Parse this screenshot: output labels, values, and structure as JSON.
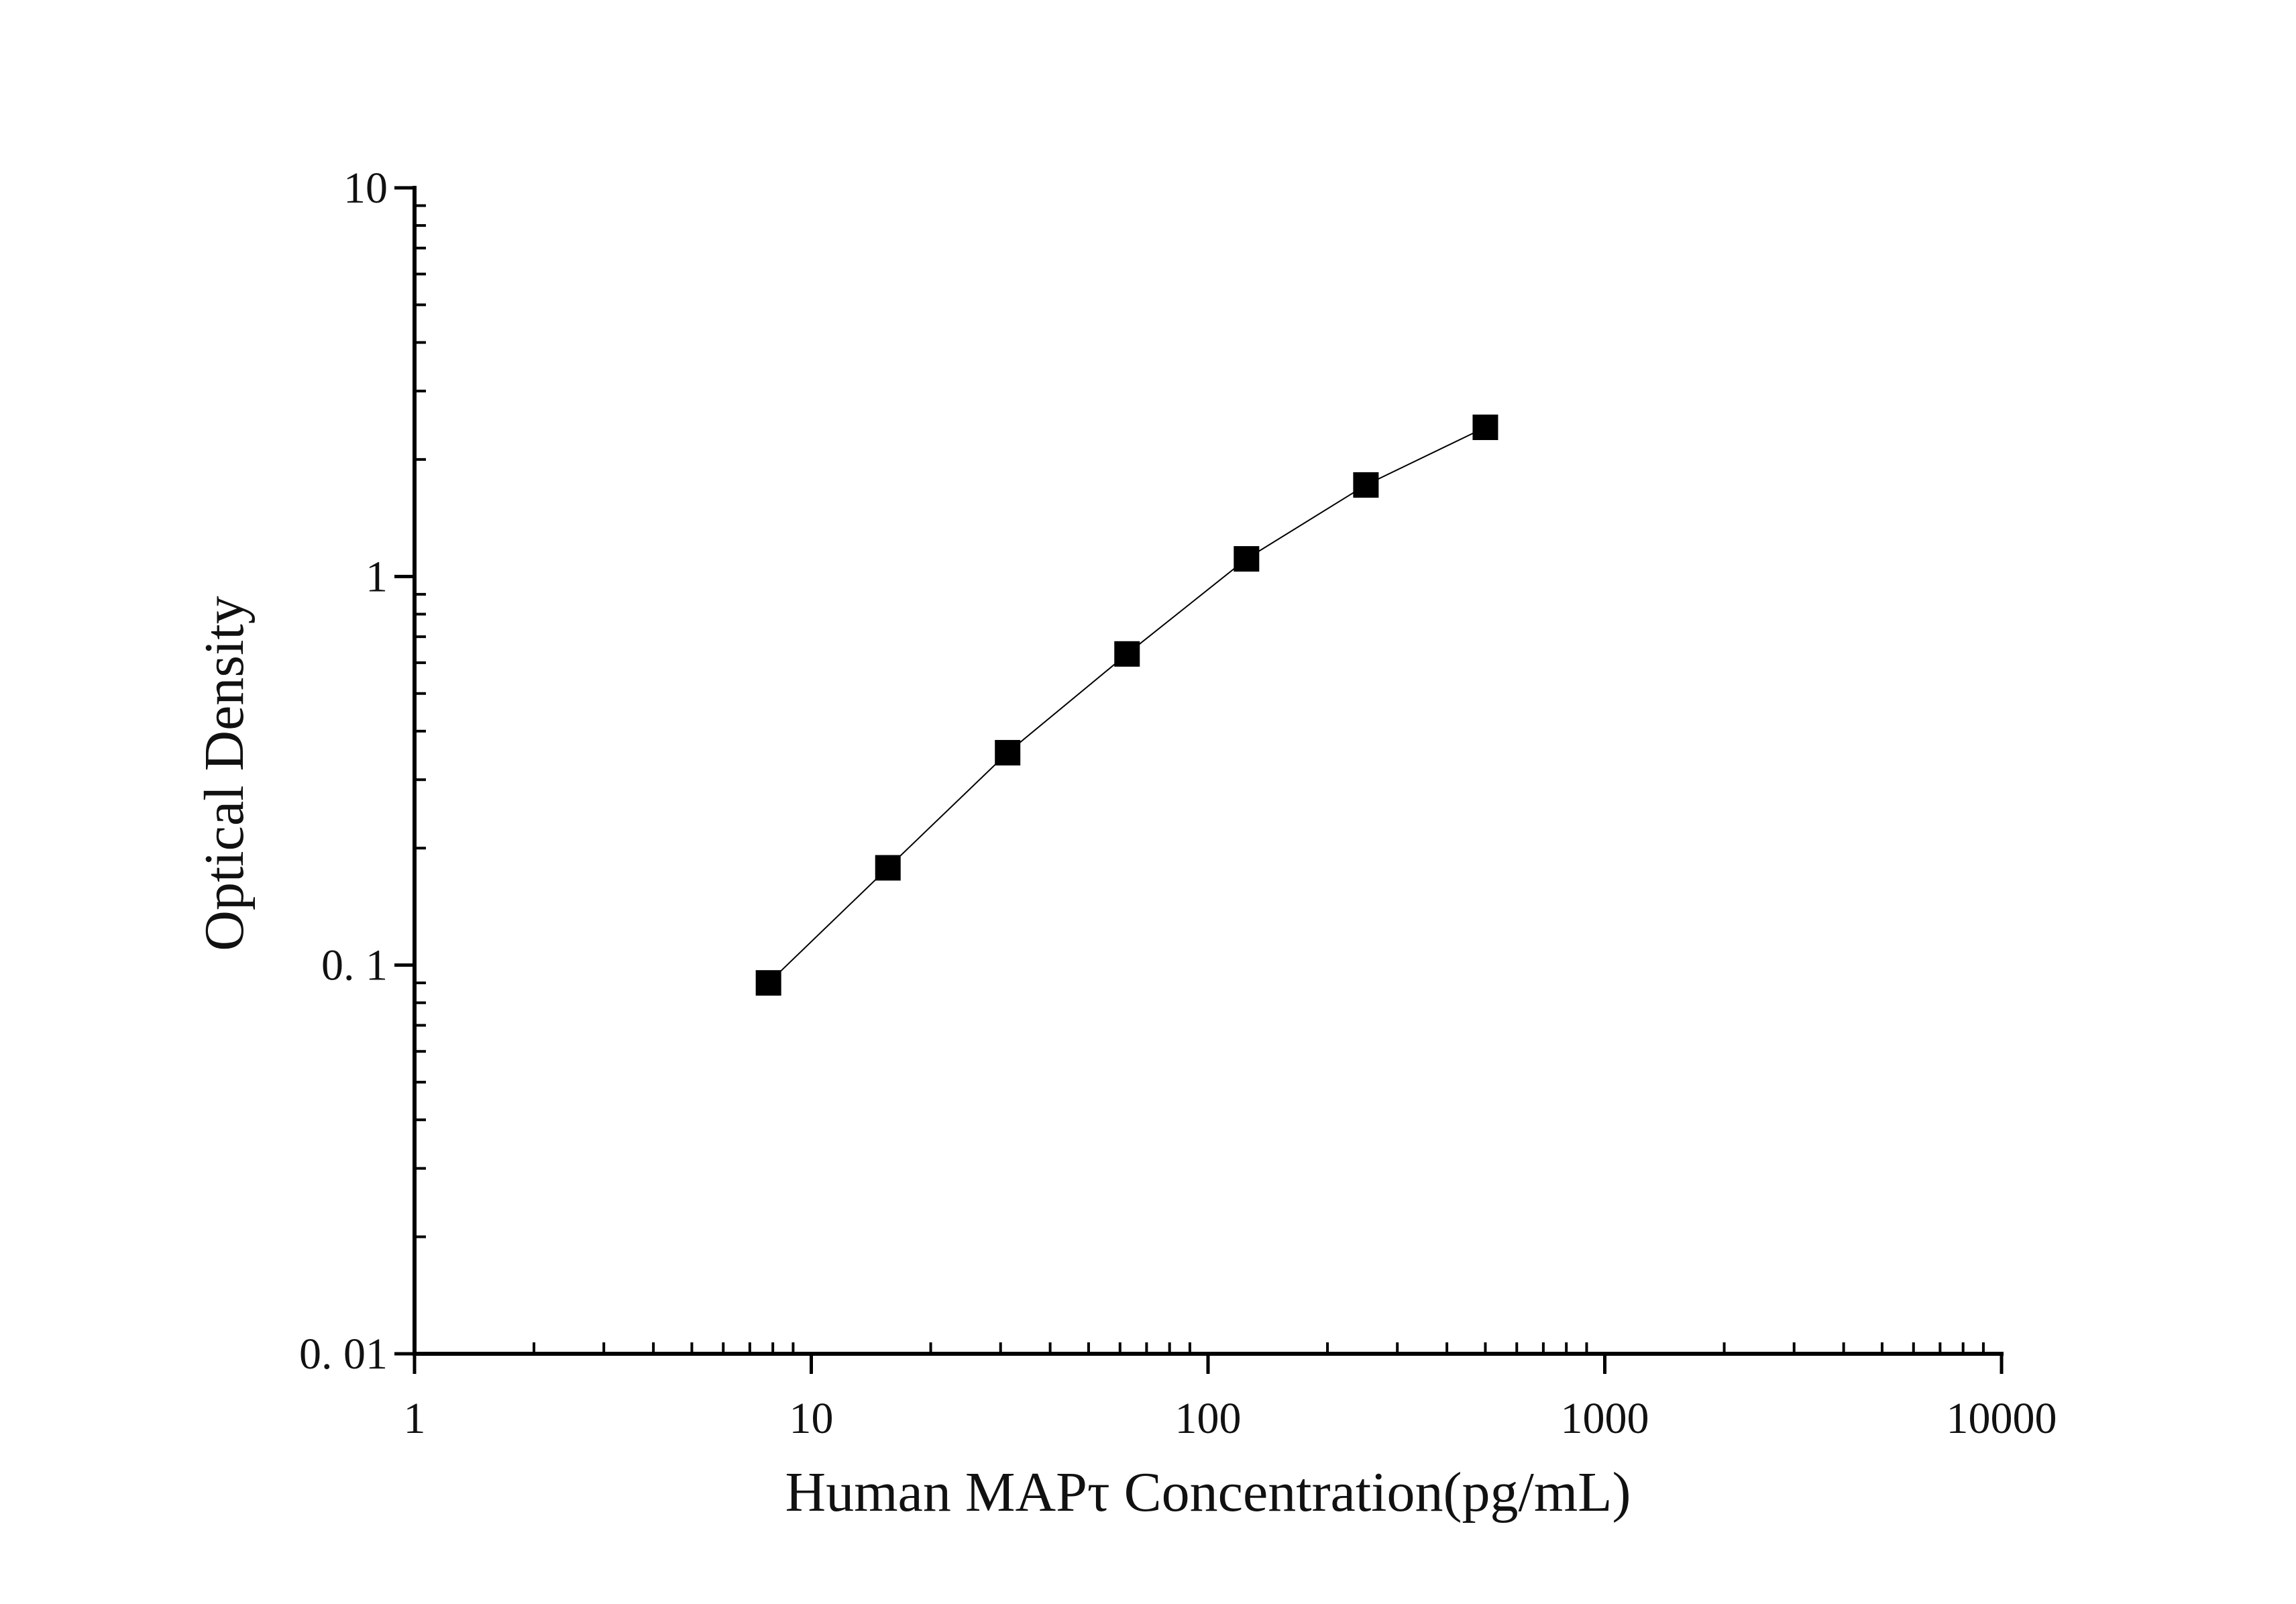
{
  "chart_data": {
    "type": "scatter",
    "title": "",
    "xlabel": "Human MAPτ Concentration(pg/mL)",
    "ylabel": "Optical Density",
    "xscale": "log",
    "yscale": "log",
    "xlim": [
      1,
      10000
    ],
    "ylim": [
      0.01,
      10
    ],
    "x_ticks": [
      {
        "value": 1,
        "label": "1"
      },
      {
        "value": 10,
        "label": "10"
      },
      {
        "value": 100,
        "label": "100"
      },
      {
        "value": 1000,
        "label": "1000"
      },
      {
        "value": 10000,
        "label": "10000"
      }
    ],
    "y_ticks": [
      {
        "value": 0.01,
        "label": "0. 01"
      },
      {
        "value": 0.1,
        "label": "0. 1"
      },
      {
        "value": 1,
        "label": "1"
      },
      {
        "value": 10,
        "label": "10"
      }
    ],
    "grid": false,
    "legend": "none",
    "series": [
      {
        "marker": "square",
        "connected": true,
        "color": "#000000",
        "x": [
          7.8,
          15.6,
          31.25,
          62.5,
          125,
          250,
          500
        ],
        "y": [
          0.09,
          0.178,
          0.352,
          0.632,
          1.11,
          1.72,
          2.42
        ]
      }
    ]
  }
}
